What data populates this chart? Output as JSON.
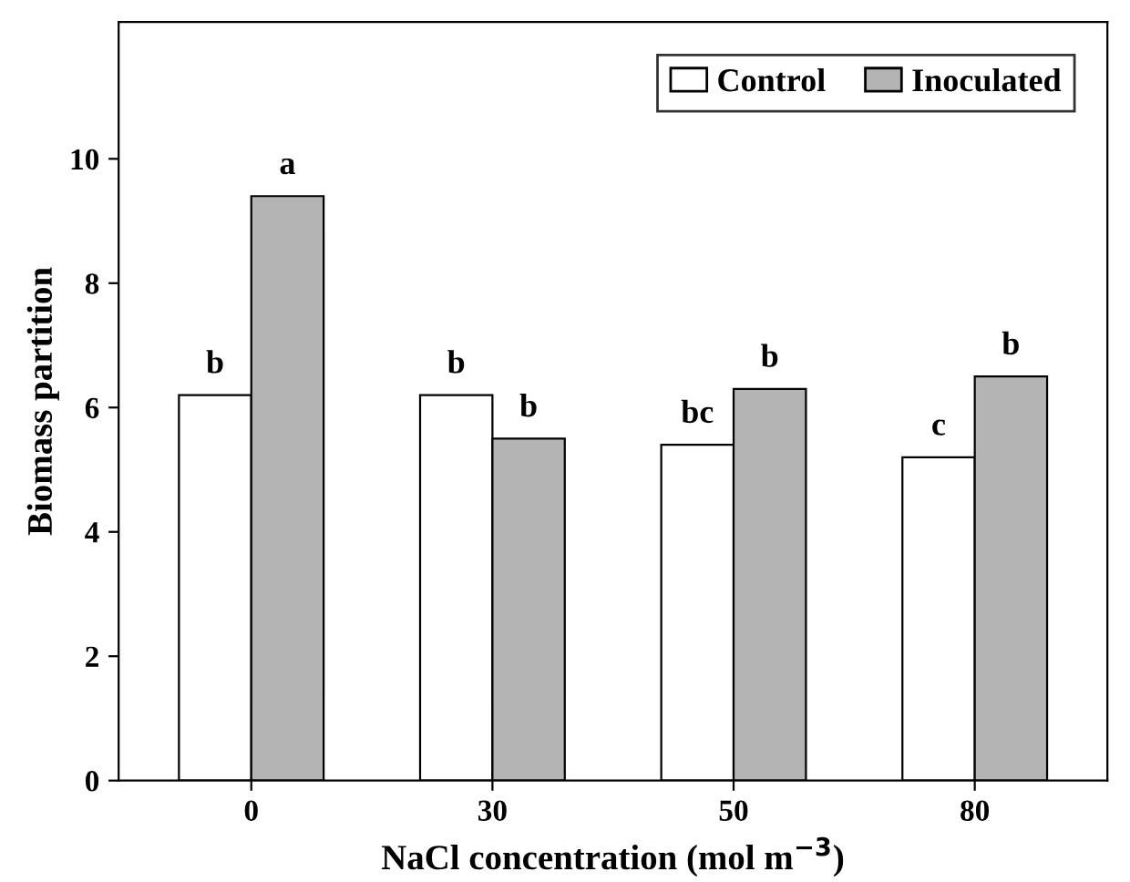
{
  "chart_data": {
    "type": "bar",
    "xlabel": "NaCl concentration (mol m$^{−3}$)",
    "ylabel": "Biomass partition",
    "categories": [
      "0",
      "30",
      "50",
      "80"
    ],
    "series": [
      {
        "name": "Control",
        "color": "#ffffff",
        "values": [
          6.2,
          6.2,
          5.4,
          5.2
        ],
        "value_labels": [
          "b",
          "b",
          "bc",
          "c"
        ]
      },
      {
        "name": "Inoculated",
        "color": "#b4b4b4",
        "values": [
          9.4,
          5.5,
          6.3,
          6.5
        ],
        "value_labels": [
          "a",
          "b",
          "b",
          "b"
        ]
      }
    ],
    "ylim": [
      0,
      12.2
    ],
    "yticks": [
      0,
      2,
      4,
      6,
      8,
      10
    ],
    "grid": false,
    "legend": "top right"
  }
}
